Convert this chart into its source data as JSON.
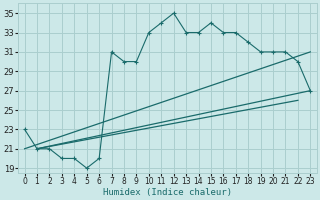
{
  "xlabel": "Humidex (Indice chaleur)",
  "ylabel": "",
  "bg_color": "#cce8e8",
  "line_color": "#1a6b6b",
  "grid_color": "#aacece",
  "xlim": [
    -0.5,
    23.5
  ],
  "ylim": [
    18.5,
    36
  ],
  "xticks": [
    0,
    1,
    2,
    3,
    4,
    5,
    6,
    7,
    8,
    9,
    10,
    11,
    12,
    13,
    14,
    15,
    16,
    17,
    18,
    19,
    20,
    21,
    22,
    23
  ],
  "yticks": [
    19,
    21,
    23,
    25,
    27,
    29,
    31,
    33,
    35
  ],
  "series1": {
    "x": [
      0,
      1,
      2,
      3,
      4,
      5,
      6,
      7,
      8,
      9,
      10,
      11,
      12,
      13,
      14,
      15,
      16,
      17,
      18,
      19,
      20,
      21,
      22,
      23
    ],
    "y": [
      23,
      21,
      21,
      20,
      20,
      19,
      20,
      31,
      30,
      30,
      33,
      34,
      35,
      33,
      33,
      34,
      33,
      33,
      32,
      31,
      31,
      31,
      30,
      27
    ]
  },
  "series2": {
    "x": [
      0,
      23
    ],
    "y": [
      21,
      31
    ]
  },
  "series3": {
    "x": [
      1,
      23
    ],
    "y": [
      21,
      27
    ]
  },
  "series4": {
    "x": [
      1,
      22
    ],
    "y": [
      21,
      26
    ]
  }
}
